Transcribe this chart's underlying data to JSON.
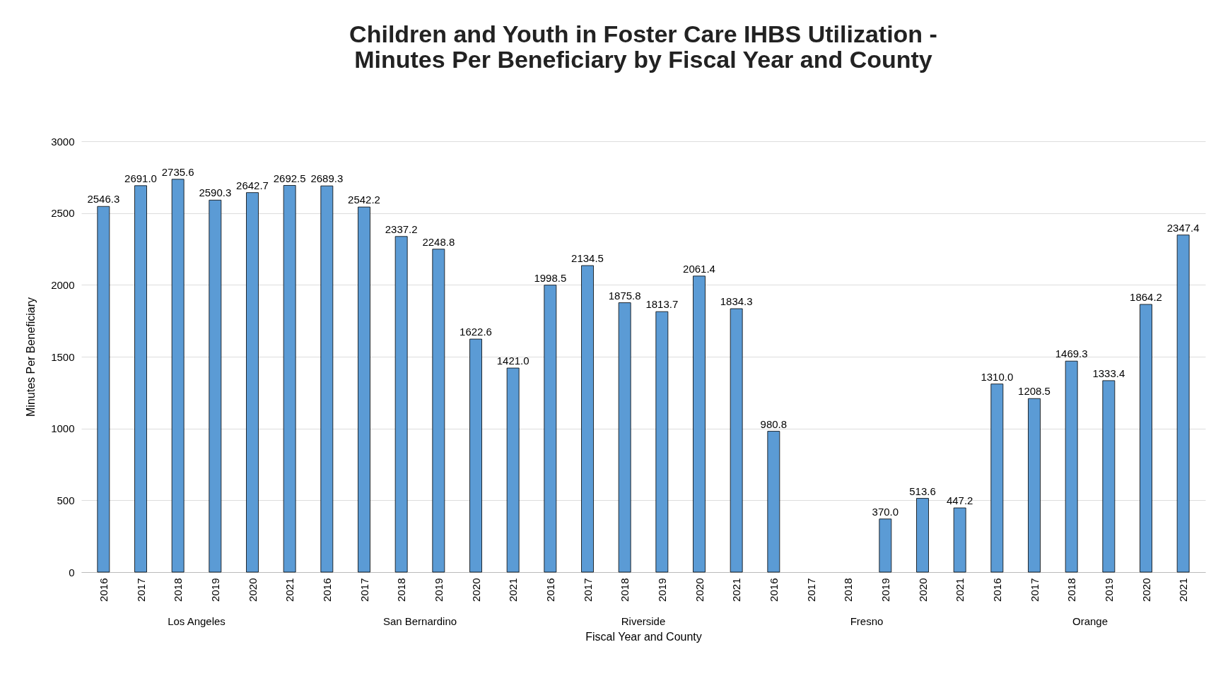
{
  "chart_data": {
    "type": "bar",
    "title": "Children and Youth in Foster Care IHBS Utilization -\nMinutes Per Beneficiary by Fiscal Year and County",
    "xlabel": "Fiscal Year and County",
    "ylabel": "Minutes Per Beneficiary",
    "categories": [
      "2016",
      "2017",
      "2018",
      "2019",
      "2020",
      "2021",
      "2016",
      "2017",
      "2018",
      "2019",
      "2020",
      "2021",
      "2016",
      "2017",
      "2018",
      "2019",
      "2020",
      "2021",
      "2016",
      "2017",
      "2018",
      "2019",
      "2020",
      "2021",
      "2016",
      "2017",
      "2018",
      "2019",
      "2020",
      "2021"
    ],
    "values": [
      2546.3,
      2691.0,
      2735.6,
      2590.3,
      2642.7,
      2692.5,
      2689.3,
      2542.2,
      2337.2,
      2248.8,
      1622.6,
      1421.0,
      1998.5,
      2134.5,
      1875.8,
      1813.7,
      2061.4,
      1834.3,
      980.8,
      null,
      null,
      370.0,
      513.6,
      447.2,
      1310.0,
      1208.5,
      1469.3,
      1333.4,
      1864.2,
      2347.4
    ],
    "value_labels": [
      "2546.3",
      "2691.0",
      "2735.6",
      "2590.3",
      "2642.7",
      "2692.5",
      "2689.3",
      "2542.2",
      "2337.2",
      "2248.8",
      "1622.6",
      "1421.0",
      "1998.5",
      "2134.5",
      "1875.8",
      "1813.7",
      "2061.4",
      "1834.3",
      "980.8",
      null,
      null,
      "370.0",
      "513.6",
      "447.2",
      "1310.0",
      "1208.5",
      "1469.3",
      "1333.4",
      "1864.2",
      "2347.4"
    ],
    "annotations": [
      "Los Angeles",
      "San Bernardino",
      "Riverside",
      "Fresno",
      "Orange"
    ],
    "color": "#5b9bd5",
    "ylim": [
      0,
      3000
    ],
    "yticks": [
      0,
      500,
      1000,
      1500,
      2000,
      2500,
      3000
    ],
    "grid": "y"
  }
}
